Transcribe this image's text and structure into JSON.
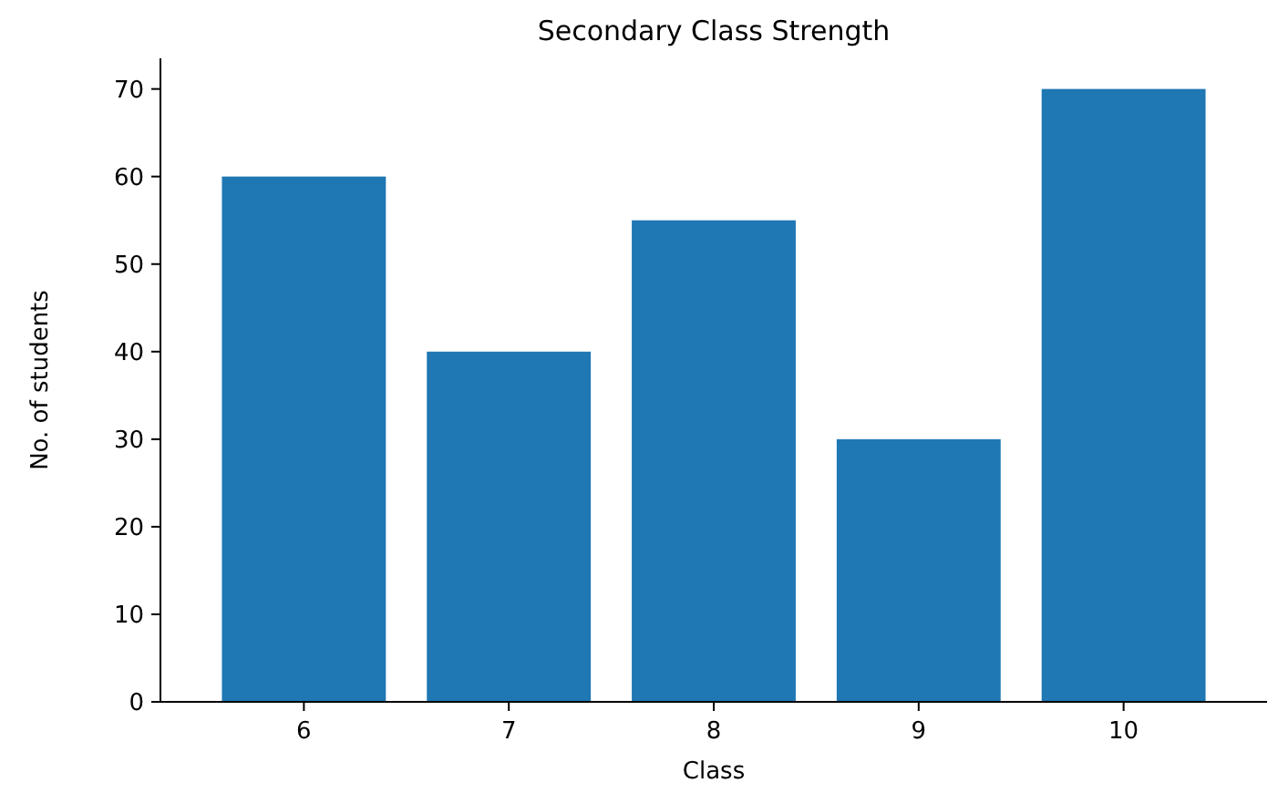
{
  "chart_data": {
    "type": "bar",
    "title": "Secondary Class Strength",
    "xlabel": "Class",
    "ylabel": "No. of students",
    "categories": [
      "6",
      "7",
      "8",
      "9",
      "10"
    ],
    "values": [
      60,
      40,
      55,
      30,
      70
    ],
    "color": "#1f77b4",
    "ylim": [
      0,
      73.5
    ],
    "yticks": [
      0,
      10,
      20,
      30,
      40,
      50,
      60,
      70
    ],
    "grid": false
  }
}
